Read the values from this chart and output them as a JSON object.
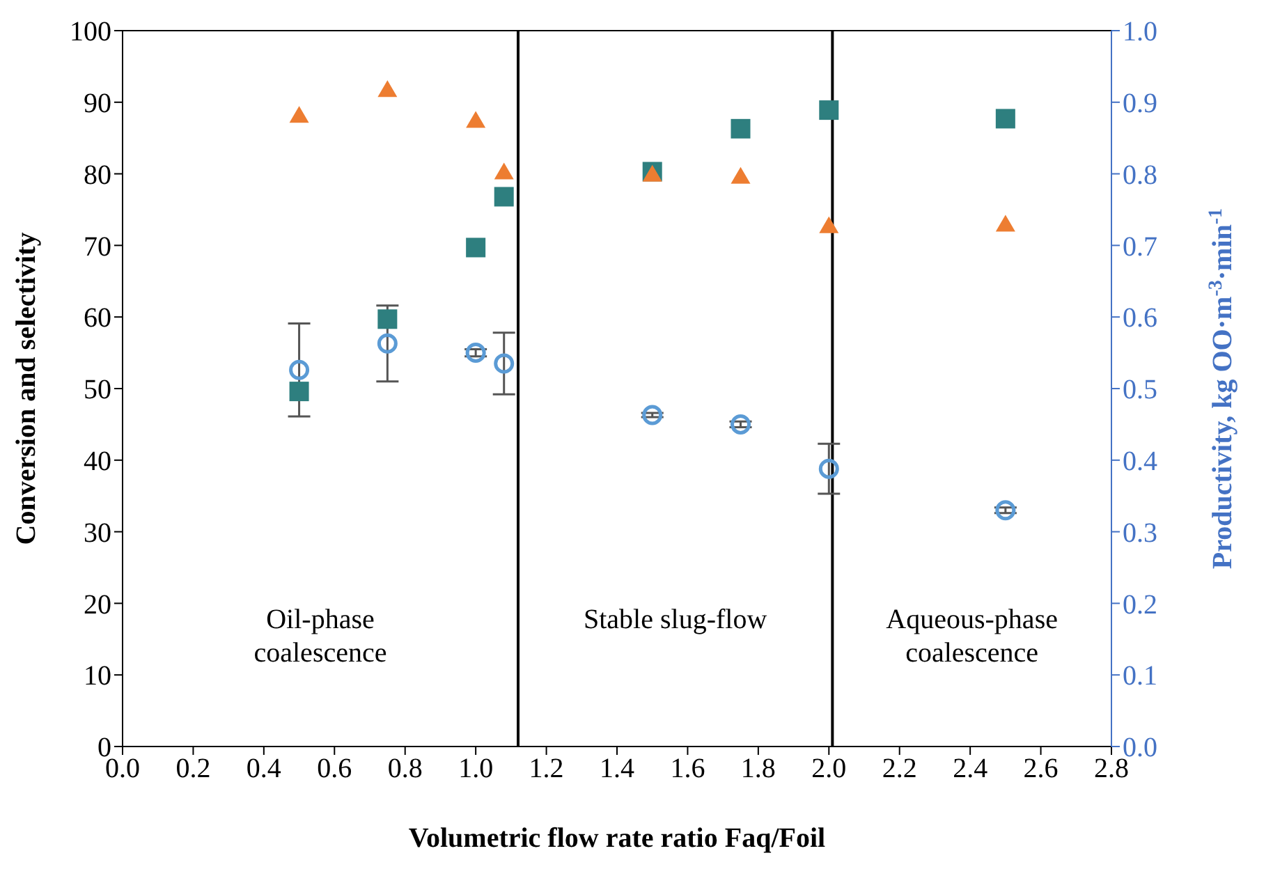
{
  "chart_data": {
    "type": "scatter",
    "xlabel": "Volumetric flow rate ratio Faq/Foil",
    "ylabel": "Conversion and selectivity",
    "y2label": "Productivity, kg OO·m$^{-3}$·min$^{-1}$",
    "x": [
      0.5,
      0.75,
      1.0,
      1.08,
      1.5,
      1.75,
      2.0,
      2.5
    ],
    "series": [
      {
        "color": "#2e7f7f",
        "marker": "square",
        "values": [
          49.6,
          59.7,
          69.7,
          76.8,
          80.3,
          86.3,
          88.9,
          87.7
        ]
      },
      {
        "color": "#ed7d31",
        "marker": "triangle",
        "values": [
          88.1,
          91.7,
          87.4,
          80.2,
          79.9,
          79.6,
          72.7,
          72.9
        ]
      },
      {
        "color": "#5b9bd5",
        "marker": "circle",
        "axis": "y2",
        "values": [
          0.526,
          0.563,
          0.55,
          0.535,
          0.463,
          0.45,
          0.388,
          0.33
        ],
        "errors": [
          0.065,
          0.053,
          0.005,
          0.043,
          0.003,
          0.004,
          0.035,
          0.004
        ]
      }
    ],
    "xlim": [
      0,
      2.8
    ],
    "xticks": [
      {
        "value": 0,
        "label": "0.0"
      },
      {
        "value": 0.2,
        "label": "0.2"
      },
      {
        "value": 0.4,
        "label": "0.4"
      },
      {
        "value": 0.6,
        "label": "0.6"
      },
      {
        "value": 0.8,
        "label": "0.8"
      },
      {
        "value": 1,
        "label": "1.0"
      },
      {
        "value": 1.2,
        "label": "1.2"
      },
      {
        "value": 1.4,
        "label": "1.4"
      },
      {
        "value": 1.6,
        "label": "1.6"
      },
      {
        "value": 1.8,
        "label": "1.8"
      },
      {
        "value": 2,
        "label": "2.0"
      },
      {
        "value": 2.2,
        "label": "2.2"
      },
      {
        "value": 2.4,
        "label": "2.4"
      },
      {
        "value": 2.6,
        "label": "2.6"
      },
      {
        "value": 2.8,
        "label": "2.8"
      }
    ],
    "ylim": [
      0,
      100
    ],
    "yticks": [
      0,
      10,
      20,
      30,
      40,
      50,
      60,
      70,
      80,
      90,
      100
    ],
    "y2lim": [
      0,
      1
    ],
    "y2ticks": [
      {
        "value": 0,
        "label": "0.0"
      },
      0.1,
      0.2,
      0.3,
      0.4,
      0.5,
      0.6,
      0.7,
      0.8,
      0.9,
      {
        "value": 1,
        "label": "1.0"
      }
    ],
    "ref_lines": [
      {
        "axis": "x",
        "value": 1.12,
        "color": "#000000"
      },
      {
        "axis": "x",
        "value": 2.01,
        "color": "#000000"
      }
    ],
    "annotations": [
      "Oil-phase\ncoalescence",
      "Stable slug-flow",
      "Aqueous-phase\ncoalescence"
    ],
    "grid": false,
    "legend": false
  }
}
